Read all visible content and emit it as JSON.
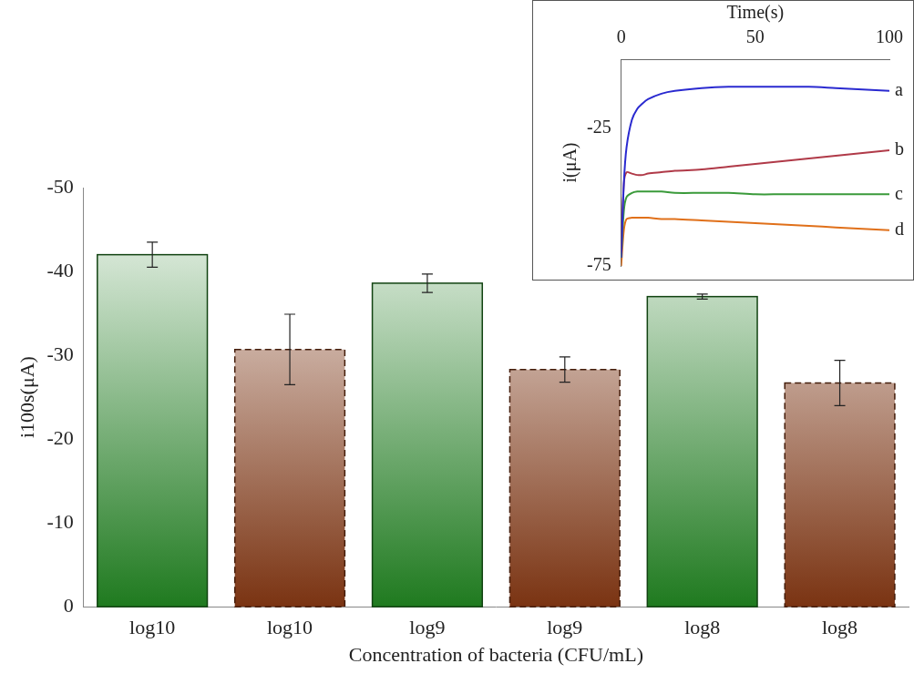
{
  "chart_data": [
    {
      "type": "bar",
      "x_label": "Concentration of bacteria (CFU/mL)",
      "y_label": "i100s(μA)",
      "categories": [
        "log10",
        "log10",
        "log9",
        "log9",
        "log8",
        "log8"
      ],
      "series": [
        {
          "color": "#1f7a1f",
          "line_style": "solid",
          "values": [
            -42,
            null,
            -38.6,
            null,
            -37,
            null
          ],
          "errors": [
            1.5,
            null,
            1.1,
            null,
            0.3,
            null
          ]
        },
        {
          "color": "#7a3312",
          "line_style": "dashed",
          "values": [
            null,
            -30.7,
            null,
            -28.3,
            null,
            -26.7
          ],
          "errors": [
            null,
            4.2,
            null,
            1.5,
            null,
            2.7
          ]
        }
      ],
      "ylim": [
        0,
        -50
      ],
      "yticks": [
        0,
        -10,
        -20,
        -30,
        -40,
        -50
      ],
      "grid": false
    },
    {
      "type": "line",
      "x_label": "Time(s)",
      "y_label": "i(μA)",
      "x": [
        0,
        1,
        2,
        4,
        6,
        8,
        10,
        15,
        20,
        30,
        40,
        50,
        60,
        70,
        80,
        90,
        100
      ],
      "series": [
        {
          "name": "a",
          "color": "#2a2ad0",
          "values": [
            -72,
            -45,
            -32,
            -22,
            -18,
            -16,
            -14.5,
            -12.5,
            -11.5,
            -10.5,
            -10,
            -10,
            -10,
            -10,
            -10.5,
            -11,
            -11.5
          ]
        },
        {
          "name": "b",
          "color": "#b03a48",
          "values": [
            -70,
            -45,
            -41,
            -41.5,
            -42,
            -42,
            -41.5,
            -41,
            -40.5,
            -40,
            -39,
            -38,
            -37,
            -36,
            -35,
            -34,
            -33
          ]
        },
        {
          "name": "c",
          "color": "#3a9a3a",
          "values": [
            -72,
            -55,
            -50,
            -48.5,
            -48,
            -48,
            -48,
            -48,
            -48.5,
            -48.5,
            -48.5,
            -49,
            -49,
            -49,
            -49,
            -49,
            -49
          ]
        },
        {
          "name": "d",
          "color": "#e0701a",
          "values": [
            -75,
            -62,
            -58,
            -57.5,
            -57.5,
            -57.5,
            -57.5,
            -58,
            -58,
            -58.5,
            -59,
            -59.5,
            -60,
            -60.5,
            -61,
            -61.5,
            -62
          ]
        }
      ],
      "xlim": [
        0,
        100
      ],
      "xticks": [
        0,
        50,
        100
      ],
      "ylim": [
        -75,
        0
      ],
      "yticks": [
        -75,
        -25
      ],
      "grid": false
    }
  ]
}
